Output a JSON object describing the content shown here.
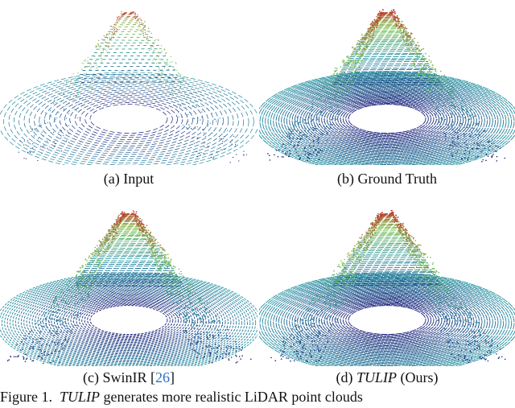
{
  "panels": [
    {
      "id": "a",
      "caption": "(a) Input",
      "density": 0.35
    },
    {
      "id": "b",
      "caption_prefix": "(b) ",
      "caption_text": "Ground Truth",
      "density": 1.0
    },
    {
      "id": "c",
      "caption_prefix": "(c) SwinIR [",
      "caption_ref": "26",
      "caption_suffix": "]",
      "density": 0.95
    },
    {
      "id": "d",
      "caption_prefix": "(d) ",
      "caption_italic": "TULIP",
      "caption_suffix": " (Ours)",
      "density": 1.0
    }
  ],
  "figure_caption": {
    "label": "Figure 1.",
    "name": "TULIP",
    "text": " generates more realistic LiDAR point clouds"
  },
  "colors": {
    "near": "#1a1f7a",
    "mid": "#1f8fa0",
    "far_mid": "#7cc34a",
    "far": "#c0392b",
    "ref_link": "#2a6fbf"
  }
}
